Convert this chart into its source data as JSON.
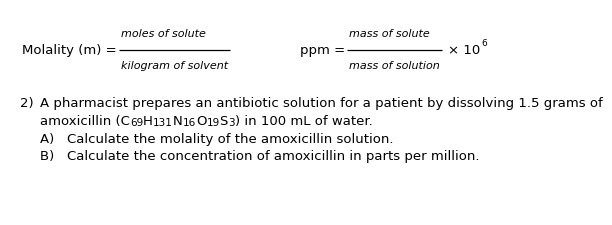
{
  "bg_color": "#ffffff",
  "fs_main": 9.5,
  "fs_italic": 8.0,
  "fs_sub": 7.5,
  "fs_super": 6.5,
  "mol_label": "Molality (m) = ",
  "mol_num": "moles of solute",
  "mol_den": "kilogram of solvent",
  "ppm_label": "ppm = ",
  "ppm_num": "mass of solute",
  "ppm_den": "mass of solution",
  "ppm_times": "× 10",
  "ppm_exp": "6",
  "q_num": "2)",
  "q_line1": "A pharmacist prepares an antibiotic solution for a patient by dissolving 1.5 grams of",
  "q_line2a": "amoxicillin (C",
  "q_line2b": "69",
  "q_line2c": "H",
  "q_line2d": "131",
  "q_line2e": "N",
  "q_line2f": "16",
  "q_line2g": "O",
  "q_line2h": "19",
  "q_line2i": "S",
  "q_line2j": "3",
  "q_line2k": ") in 100 mL of water.",
  "q_sub_a": "A)   Calculate the molality of the amoxicillin solution.",
  "q_sub_b": "B)   Calculate the concentration of amoxicillin in parts per million."
}
